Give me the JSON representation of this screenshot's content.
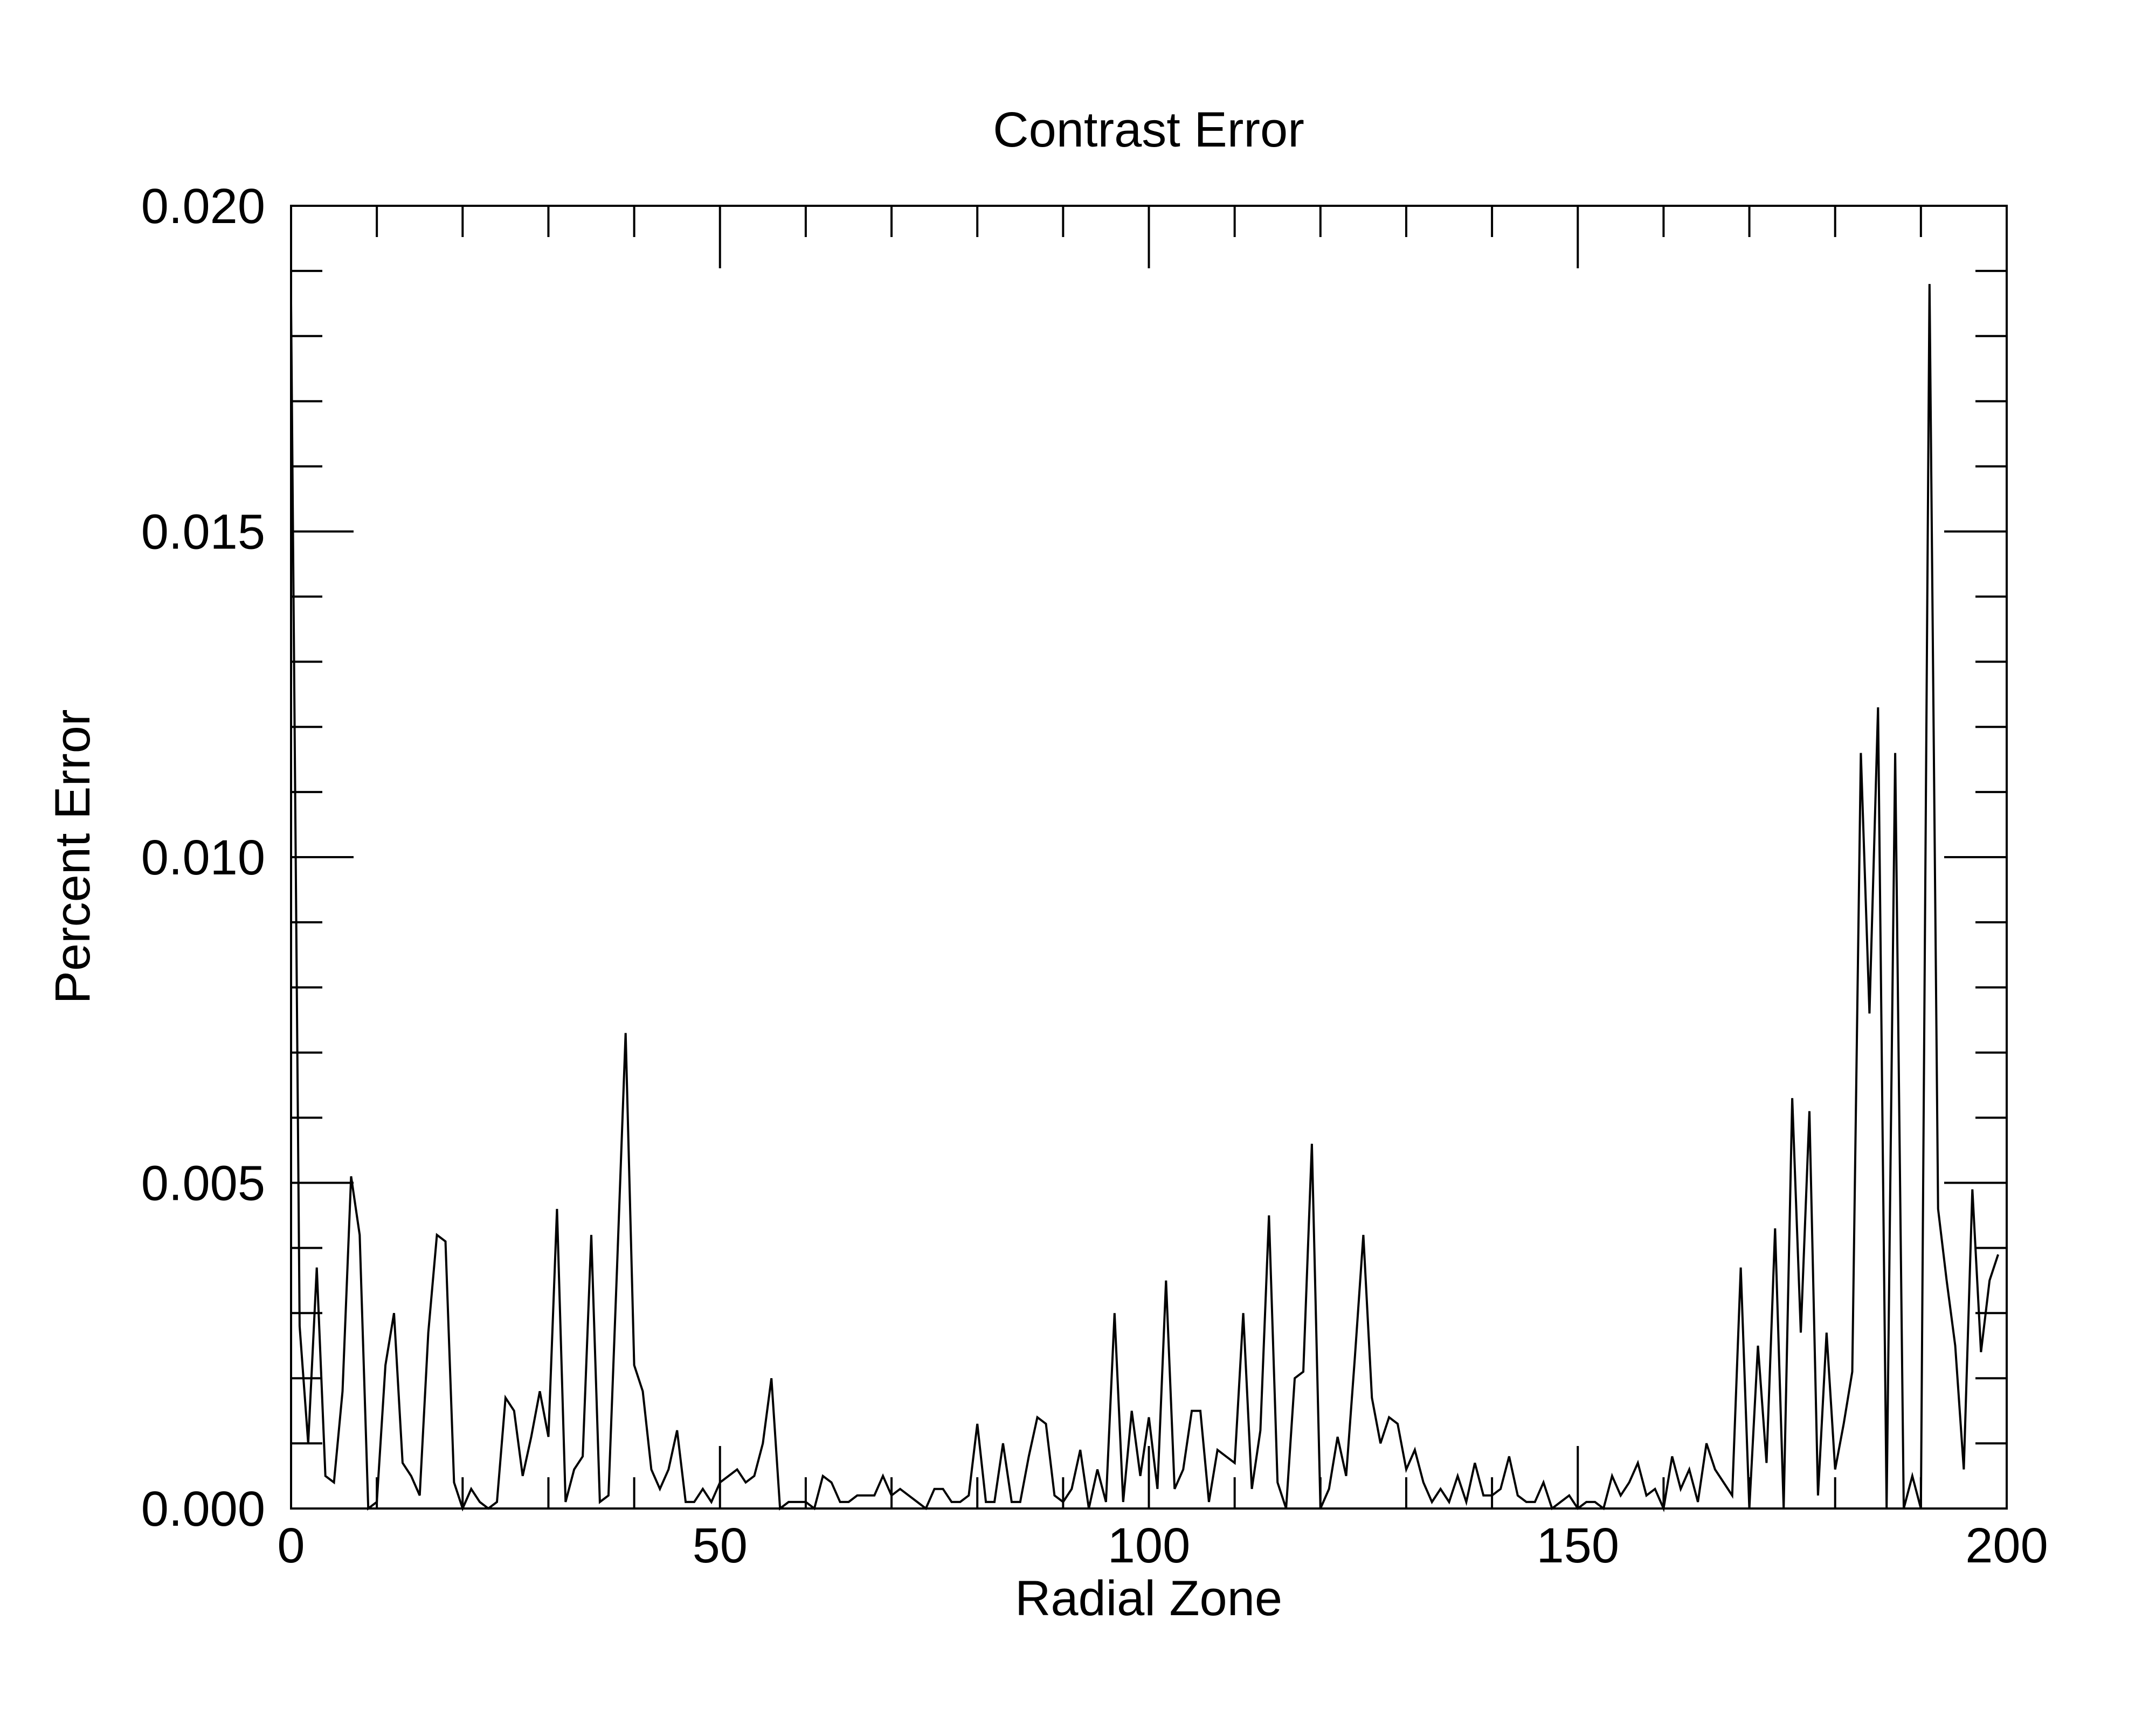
{
  "chart_data": {
    "type": "line",
    "title": "Contrast Error",
    "xlabel": "Radial Zone",
    "ylabel": "Percent Error",
    "xlim": [
      0,
      200
    ],
    "ylim": [
      0,
      0.02
    ],
    "x_ticks": [
      {
        "value": 0,
        "label": "0"
      },
      {
        "value": 50,
        "label": "50"
      },
      {
        "value": 100,
        "label": "100"
      },
      {
        "value": 150,
        "label": "150"
      },
      {
        "value": 200,
        "label": "200"
      }
    ],
    "y_ticks": [
      {
        "value": 0.0,
        "label": "0.000"
      },
      {
        "value": 0.005,
        "label": "0.005"
      },
      {
        "value": 0.01,
        "label": "0.010"
      },
      {
        "value": 0.015,
        "label": "0.015"
      },
      {
        "value": 0.02,
        "label": "0.020"
      }
    ],
    "x_minor_step": 10,
    "y_minor_step": 0.001,
    "grid": false,
    "legend": "none",
    "line_color": "#000000",
    "series": [
      {
        "x": [
          0,
          1,
          2,
          3,
          4,
          5,
          6,
          7,
          8,
          9,
          10,
          11,
          12,
          13,
          14,
          15,
          16,
          17,
          18,
          19,
          20,
          21,
          22,
          23,
          24,
          25,
          26,
          27,
          28,
          29,
          30,
          31,
          32,
          33,
          34,
          35,
          36,
          37,
          38,
          39,
          40,
          41,
          42,
          43,
          44,
          45,
          46,
          47,
          48,
          49,
          50,
          51,
          52,
          53,
          54,
          55,
          56,
          57,
          58,
          59,
          60,
          61,
          62,
          63,
          64,
          65,
          66,
          67,
          68,
          69,
          70,
          71,
          72,
          73,
          74,
          75,
          76,
          77,
          78,
          79,
          80,
          81,
          82,
          83,
          84,
          85,
          86,
          87,
          88,
          89,
          90,
          91,
          92,
          93,
          94,
          95,
          96,
          97,
          98,
          99,
          100,
          101,
          102,
          103,
          104,
          105,
          106,
          107,
          108,
          109,
          110,
          111,
          112,
          113,
          114,
          115,
          116,
          117,
          118,
          119,
          120,
          121,
          122,
          123,
          124,
          125,
          126,
          127,
          128,
          129,
          130,
          131,
          132,
          133,
          134,
          135,
          136,
          137,
          138,
          139,
          140,
          141,
          142,
          143,
          144,
          145,
          146,
          147,
          148,
          149,
          150,
          151,
          152,
          153,
          154,
          155,
          156,
          157,
          158,
          159,
          160,
          161,
          162,
          163,
          164,
          165,
          166,
          167,
          168,
          169,
          170,
          171,
          172,
          173,
          174,
          175,
          176,
          177,
          178,
          179,
          180,
          181,
          182,
          183,
          184,
          185,
          186,
          187,
          188,
          189,
          190,
          191,
          192,
          193,
          194,
          195,
          196,
          197,
          198,
          199
        ],
        "values": [
          0.0185,
          0.0028,
          0.001,
          0.0037,
          0.0005,
          0.0004,
          0.0018,
          0.0051,
          0.0042,
          0.0,
          0.0001,
          0.0022,
          0.003,
          0.0007,
          0.0005,
          0.0002,
          0.0027,
          0.0042,
          0.0041,
          0.0004,
          0.0,
          0.0003,
          0.0001,
          0.0,
          0.0001,
          0.0017,
          0.0015,
          0.0005,
          0.0011,
          0.0018,
          0.0011,
          0.0046,
          0.0001,
          0.0006,
          0.0008,
          0.0042,
          0.0001,
          0.0002,
          0.0037,
          0.0073,
          0.0022,
          0.0018,
          0.0006,
          0.0003,
          0.0006,
          0.0012,
          0.0001,
          0.0001,
          0.0003,
          0.0001,
          0.0004,
          0.0005,
          0.0006,
          0.0004,
          0.0005,
          0.001,
          0.002,
          0.0,
          0.0001,
          0.0001,
          0.0001,
          0.0,
          0.0005,
          0.0004,
          0.0001,
          0.0001,
          0.0002,
          0.0002,
          0.0002,
          0.0005,
          0.0002,
          0.0003,
          0.0002,
          0.0001,
          0.0,
          0.0003,
          0.0003,
          0.0001,
          0.0001,
          0.0002,
          0.0013,
          0.0001,
          0.0001,
          0.001,
          0.0001,
          0.0001,
          0.0008,
          0.0014,
          0.0013,
          0.0002,
          0.0001,
          0.0003,
          0.0009,
          0.0,
          0.0006,
          0.0001,
          0.003,
          0.0001,
          0.0015,
          0.0005,
          0.0014,
          0.0003,
          0.0035,
          0.0003,
          0.0006,
          0.0015,
          0.0015,
          0.0001,
          0.0009,
          0.0008,
          0.0007,
          0.003,
          0.0003,
          0.0012,
          0.0045,
          0.0004,
          0.0,
          0.002,
          0.0021,
          0.0056,
          0.0,
          0.0003,
          0.0011,
          0.0005,
          0.0023,
          0.0042,
          0.0017,
          0.001,
          0.0014,
          0.0013,
          0.0006,
          0.0009,
          0.0004,
          0.0001,
          0.0003,
          0.0001,
          0.0005,
          0.0001,
          0.0007,
          0.0002,
          0.0002,
          0.0003,
          0.0008,
          0.0002,
          0.0001,
          0.0001,
          0.0004,
          0.0,
          0.0001,
          0.0002,
          0.0,
          0.0001,
          0.0001,
          0.0,
          0.0005,
          0.0002,
          0.0004,
          0.0007,
          0.0002,
          0.0003,
          0.0,
          0.0008,
          0.0003,
          0.0006,
          0.0001,
          0.001,
          0.0006,
          0.0004,
          0.0002,
          0.0037,
          0.0,
          0.0025,
          0.0007,
          0.0043,
          0.0,
          0.0063,
          0.0027,
          0.0061,
          0.0002,
          0.0027,
          0.0006,
          0.0013,
          0.0021,
          0.0116,
          0.0076,
          0.0123,
          0.0,
          0.0116,
          0.0,
          0.0005,
          0.0,
          0.0188,
          0.0046,
          0.0035,
          0.0025,
          0.0006,
          0.0049,
          0.0024,
          0.0035,
          0.0039
        ]
      }
    ]
  }
}
